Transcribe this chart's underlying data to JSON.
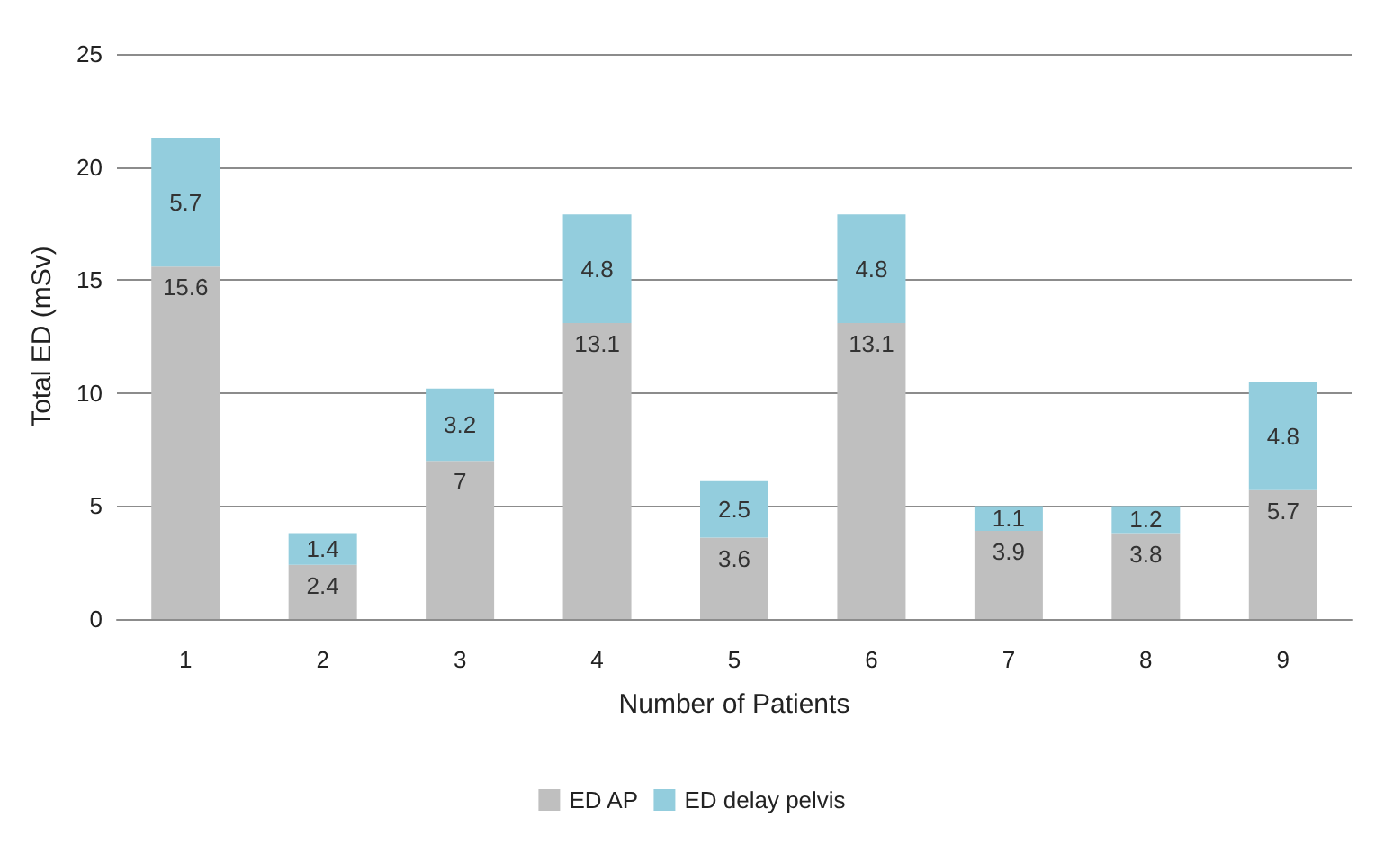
{
  "chart_data": {
    "type": "bar",
    "stacked": true,
    "xlabel": "Number of Patients",
    "ylabel": "Total ED (mSv)",
    "categories": [
      "1",
      "2",
      "3",
      "4",
      "5",
      "6",
      "7",
      "8",
      "9"
    ],
    "series": [
      {
        "name": "ED AP",
        "color": "#bfbfbf",
        "values": [
          15.6,
          2.4,
          7,
          13.1,
          3.6,
          13.1,
          3.9,
          3.8,
          5.7
        ]
      },
      {
        "name": "ED delay pelvis",
        "color": "#93cddd",
        "values": [
          5.7,
          1.4,
          3.2,
          4.8,
          2.5,
          4.8,
          1.1,
          1.2,
          4.8
        ]
      }
    ],
    "ylim": [
      0,
      25
    ],
    "yticks": [
      0,
      5,
      10,
      15,
      20,
      25
    ],
    "grid": "y",
    "legend": "bottom",
    "data_labels": true
  }
}
